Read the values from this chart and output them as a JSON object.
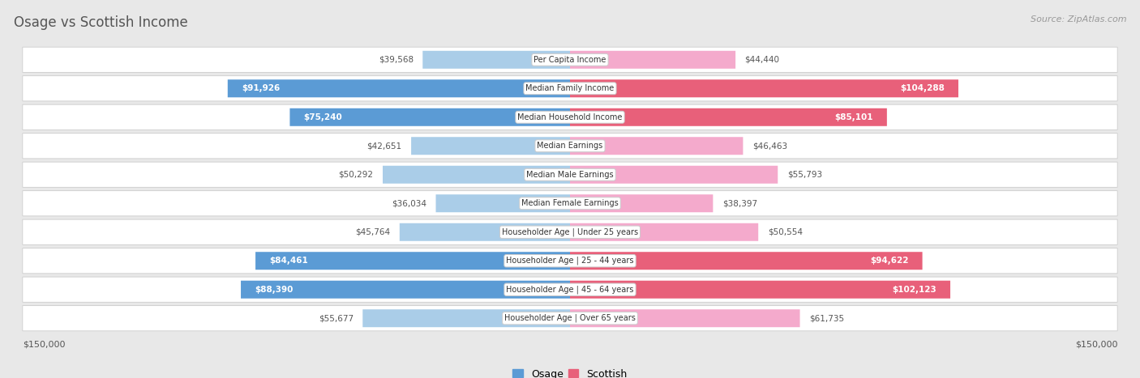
{
  "title": "Osage vs Scottish Income",
  "source": "Source: ZipAtlas.com",
  "categories": [
    "Per Capita Income",
    "Median Family Income",
    "Median Household Income",
    "Median Earnings",
    "Median Male Earnings",
    "Median Female Earnings",
    "Householder Age | Under 25 years",
    "Householder Age | 25 - 44 years",
    "Householder Age | 45 - 64 years",
    "Householder Age | Over 65 years"
  ],
  "osage_values": [
    39568,
    91926,
    75240,
    42651,
    50292,
    36034,
    45764,
    84461,
    88390,
    55677
  ],
  "scottish_values": [
    44440,
    104288,
    85101,
    46463,
    55793,
    38397,
    50554,
    94622,
    102123,
    61735
  ],
  "osage_labels": [
    "$39,568",
    "$91,926",
    "$75,240",
    "$42,651",
    "$50,292",
    "$36,034",
    "$45,764",
    "$84,461",
    "$88,390",
    "$55,677"
  ],
  "scottish_labels": [
    "$44,440",
    "$104,288",
    "$85,101",
    "$46,463",
    "$55,793",
    "$38,397",
    "$50,554",
    "$94,622",
    "$102,123",
    "$61,735"
  ],
  "max_value": 150000,
  "osage_color_light": "#aacde8",
  "osage_color_dark": "#5b9bd5",
  "scottish_color_light": "#f4aacc",
  "scottish_color_dark": "#e8607a",
  "label_threshold": 75000,
  "bg_color": "#e8e8e8",
  "row_bg": "#ffffff",
  "legend_osage": "Osage",
  "legend_scottish": "Scottish",
  "x_label_left": "$150,000",
  "x_label_right": "$150,000",
  "title_color": "#555555",
  "source_color": "#999999"
}
